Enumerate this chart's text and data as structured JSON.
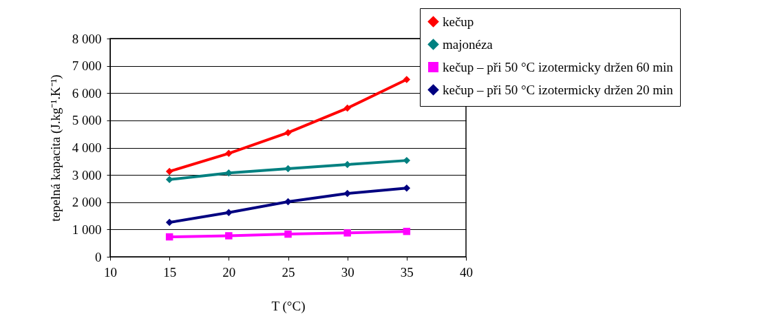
{
  "chart_data": {
    "type": "line",
    "xlabel": "T (°C)",
    "ylabel": "tepelná kapacita (J.kg⁻¹.K⁻¹)",
    "x": [
      15,
      20,
      25,
      30,
      35
    ],
    "series": [
      {
        "name": "kečup",
        "color": "#ff0000",
        "marker": "diamond",
        "values": [
          3130,
          3790,
          4550,
          5450,
          6500
        ]
      },
      {
        "name": "majonéza",
        "color": "#008080",
        "marker": "diamond",
        "values": [
          2830,
          3070,
          3230,
          3380,
          3530
        ]
      },
      {
        "name": "kečup – při 50 °C izotermicky držen 60 min",
        "color": "#ff00ff",
        "marker": "square",
        "values": [
          730,
          770,
          830,
          875,
          930
        ]
      },
      {
        "name": "kečup – při 50 °C izotermicky držen 20 min",
        "color": "#000080",
        "marker": "diamond",
        "values": [
          1260,
          1620,
          2020,
          2320,
          2520
        ]
      }
    ],
    "xlim": [
      10,
      40
    ],
    "xticks": [
      10,
      15,
      20,
      25,
      30,
      35,
      40
    ],
    "ylim": [
      0,
      8000
    ],
    "yticks": [
      0,
      {
        "value": 1000,
        "label": "1 000"
      },
      {
        "value": 2000,
        "label": "2 000"
      },
      {
        "value": 3000,
        "label": "3 000"
      },
      {
        "value": 4000,
        "label": "4 000"
      },
      {
        "value": 5000,
        "label": "5 000"
      },
      {
        "value": 6000,
        "label": "6 000"
      },
      {
        "value": 7000,
        "label": "7 000"
      },
      {
        "value": 8000,
        "label": "8 000"
      }
    ],
    "grid": "y",
    "legend": "top right",
    "line_style": "solid"
  }
}
